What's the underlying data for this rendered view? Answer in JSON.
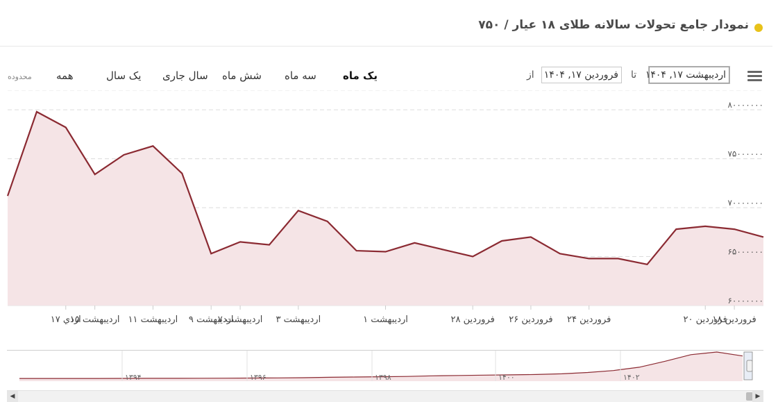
{
  "header": {
    "title": "نمودار جامع تحولات سالانه طلای ۱۸ عیار / ۷۵۰",
    "dot_color": "#e8c21a"
  },
  "toolbar": {
    "range_label": "محدوده",
    "ranges": [
      {
        "label": "همه",
        "active": false
      },
      {
        "label": "یک سال",
        "active": false
      },
      {
        "label": "سال جاری",
        "active": false
      },
      {
        "label": "شش ماه",
        "active": false
      },
      {
        "label": "سه ماه",
        "active": false
      },
      {
        "label": "یک ماه",
        "active": true
      }
    ],
    "from_label": "از",
    "from_value": "فروردین ۱۷, ۱۴۰۴",
    "to_label": "تا",
    "to_value": "اردیبهشت ۱۷, ۱۴۰۴",
    "menu_icon": "hamburger-menu-icon"
  },
  "chart_data": {
    "type": "area",
    "line_color": "#8b2a32",
    "fill_color": "#f5e4e6",
    "ylim": [
      60000000,
      82000000
    ],
    "y_ticks": [
      60000000,
      65000000,
      70000000,
      75000000,
      80000000
    ],
    "y_tick_labels": [
      "۶۰۰۰۰۰۰۰",
      "۶۵۰۰۰۰۰۰",
      "۷۰۰۰۰۰۰۰",
      "۷۵۰۰۰۰۰۰",
      "۸۰۰۰۰۰۰۰"
    ],
    "grid": true,
    "x_labels": [
      "اردي ۱۷",
      "اردیبهشت ۱۵",
      "اردیبهشت ۱۱",
      "اردیبهشت ۹",
      "اردیبهشت ۷",
      "اردیبهشت ۳",
      "اردیبهشت ۱",
      "فروردین ۲۸",
      "فروردین ۲۶",
      "فروردین ۲۴",
      "فروردین ۲۰",
      "فروردین ۱۸"
    ],
    "x_label_points": [
      24,
      23,
      21,
      19,
      18,
      16,
      13,
      10,
      8,
      6,
      2,
      1
    ],
    "series": [
      {
        "values": [
          71200000,
          79800000,
          78200000,
          73400000,
          75400000,
          76300000,
          73500000,
          65300000,
          66500000,
          66200000,
          69700000,
          68600000,
          65600000,
          65500000,
          66400000,
          65700000,
          65000000,
          66600000,
          67000000,
          65300000,
          64800000,
          64800000,
          64200000,
          67800000,
          68100000,
          67800000,
          67000000
        ]
      }
    ],
    "navigator": {
      "labels": [
        "۱۳۹۴",
        "۱۳۹۶",
        "۱۳۹۸",
        "۱۴۰۰",
        "۱۴۰۲"
      ],
      "values": [
        2,
        2,
        2,
        2,
        2.1,
        2.2,
        2.2,
        2.3,
        2.4,
        2.6,
        2.8,
        3.2,
        3.8,
        4.2,
        4.6,
        5,
        6,
        6.5,
        7,
        7.5,
        8,
        9,
        11,
        14,
        19,
        28,
        38,
        42,
        36
      ]
    }
  }
}
